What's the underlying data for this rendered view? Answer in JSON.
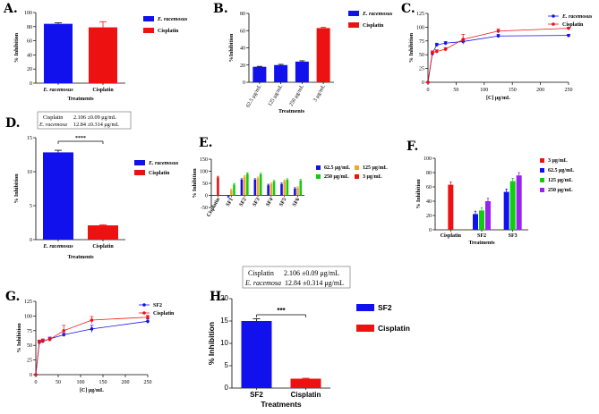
{
  "figure": {
    "colors": {
      "blue": "#1111ee",
      "red": "#ee1111",
      "green": "#11cc11",
      "orange": "#f5a623",
      "purple": "#9922ee"
    },
    "stat_box": {
      "line1_label": "Cisplatin",
      "line1_value": "2.106 ±0.09 μg/mL",
      "line2_label": "E. racemosa",
      "line2_value": "12.84 ±0.314 μg/mL"
    },
    "stat_box_h": {
      "line1_label": "Cisplatin",
      "line1_value": "2.106 ±0.09 μg/mL",
      "line2_label": "E. racemosa",
      "line2_value": "12.84 ±0.314 μg/mL"
    }
  },
  "chart_data": [
    {
      "id": "A",
      "panel_label": "A.",
      "type": "bar",
      "categories": [
        "E. racemosus",
        "Cisplatin"
      ],
      "values": [
        84,
        79
      ],
      "errors": [
        1.5,
        8
      ],
      "colors": [
        "blue",
        "red"
      ],
      "ylim": [
        0,
        100
      ],
      "yticks": [
        0,
        20,
        40,
        60,
        80,
        100
      ],
      "xlabel": "Treatments",
      "ylabel": "% Inhibition",
      "legend": [
        "E. racemosus",
        "Cisplatin"
      ]
    },
    {
      "id": "B",
      "panel_label": "B.",
      "type": "bar",
      "categories": [
        "62.5 μg/mL",
        "125 μg/mL",
        "250 μg/mL",
        "3 μg/mL"
      ],
      "values": [
        18,
        20,
        24,
        63
      ],
      "errors": [
        0.5,
        0.8,
        1,
        0.8
      ],
      "colors": [
        "blue",
        "blue",
        "blue",
        "red"
      ],
      "ylim": [
        0,
        80
      ],
      "yticks": [
        0,
        20,
        40,
        60,
        80
      ],
      "xlabel": "Treatments",
      "ylabel": "%Inhibition",
      "legend": [
        "E. racemosus",
        "Cisplatin"
      ]
    },
    {
      "id": "C",
      "panel_label": "C.",
      "type": "line",
      "series": [
        {
          "name": "E. racemosus",
          "color": "blue",
          "x": [
            0,
            7.8,
            15.6,
            31.25,
            62.5,
            125,
            250
          ],
          "y": [
            0,
            52,
            68,
            71,
            74,
            84,
            85
          ],
          "err": [
            0,
            3,
            3,
            3,
            3,
            3,
            2
          ]
        },
        {
          "name": "Cisplatin",
          "color": "red",
          "x": [
            0,
            7.8,
            15.6,
            31.25,
            62.5,
            125,
            250
          ],
          "y": [
            0,
            54,
            56,
            60,
            78,
            93,
            98
          ],
          "err": [
            0,
            3,
            3,
            3,
            9,
            4,
            2
          ]
        }
      ],
      "xlim": [
        0,
        250
      ],
      "xticks": [
        0,
        50,
        100,
        150,
        200,
        250
      ],
      "ylim": [
        0,
        125
      ],
      "yticks": [
        0,
        25,
        50,
        75,
        100,
        125
      ],
      "xlabel": "[C]  μg/mL",
      "ylabel": "% Inhibition"
    },
    {
      "id": "D",
      "panel_label": "D.",
      "type": "bar",
      "categories": [
        "E. racemosus",
        "Cisplatin"
      ],
      "values": [
        12.84,
        2.1
      ],
      "errors": [
        0.31,
        0.09
      ],
      "colors": [
        "blue",
        "red"
      ],
      "ylim": [
        0,
        15
      ],
      "yticks": [
        0,
        5,
        10,
        15
      ],
      "xlabel": "Treatments",
      "ylabel": "% Inhibition",
      "legend": [
        "E. racemosus",
        "Cisplatin"
      ],
      "significance": "****"
    },
    {
      "id": "E",
      "panel_label": "E.",
      "type": "bar",
      "categories": [
        "Cisplatin",
        "SF1",
        "SF2",
        "SF3",
        "SF4",
        "SF5",
        "SF6"
      ],
      "series": [
        {
          "name": "62.5 μg/mL",
          "color": "blue",
          "values": [
            null,
            -5,
            65,
            65,
            42,
            47,
            28
          ]
        },
        {
          "name": "125 μg/mL",
          "color": "orange",
          "values": [
            null,
            22,
            78,
            72,
            48,
            60,
            32
          ]
        },
        {
          "name": "250 μg/mL",
          "color": "green",
          "values": [
            null,
            45,
            90,
            88,
            58,
            65,
            62
          ]
        },
        {
          "name": "3 μg/mL",
          "color": "red",
          "values": [
            75,
            null,
            null,
            null,
            null,
            null,
            null
          ]
        }
      ],
      "ylim": [
        -50,
        150
      ],
      "yticks": [
        -50,
        0,
        50,
        100,
        150
      ],
      "ylabel": "% Inhibition"
    },
    {
      "id": "F",
      "panel_label": "F.",
      "type": "bar",
      "categories": [
        "Cisplatin",
        "SF2",
        "SF3"
      ],
      "series": [
        {
          "name": "3 μg/mL",
          "color": "red",
          "values": [
            63,
            null,
            null
          ]
        },
        {
          "name": "62.5 μg/mL",
          "color": "blue",
          "values": [
            null,
            22,
            53
          ]
        },
        {
          "name": "125 μg/mL",
          "color": "green",
          "values": [
            null,
            27,
            68
          ]
        },
        {
          "name": "250 μg/mL",
          "color": "purple",
          "values": [
            null,
            40,
            76
          ]
        }
      ],
      "ylim": [
        0,
        100
      ],
      "yticks": [
        0,
        20,
        40,
        60,
        80,
        100
      ],
      "xlabel": "Treatments",
      "ylabel": "% Inhibition"
    },
    {
      "id": "G",
      "panel_label": "G.",
      "type": "line",
      "series": [
        {
          "name": "SF2",
          "color": "blue",
          "x": [
            0,
            7.8,
            15.6,
            31.25,
            62.5,
            125,
            250
          ],
          "y": [
            0,
            55,
            57,
            61,
            68,
            78,
            91
          ],
          "err": [
            0,
            3,
            3,
            3,
            3,
            6,
            4
          ]
        },
        {
          "name": "Cisplatin",
          "color": "red",
          "x": [
            0,
            7.8,
            15.6,
            31.25,
            62.5,
            125,
            250
          ],
          "y": [
            0,
            56,
            58,
            60,
            75,
            93,
            98
          ],
          "err": [
            0,
            3,
            3,
            3,
            9,
            6,
            3
          ]
        }
      ],
      "xlim": [
        0,
        250
      ],
      "xticks": [
        0,
        50,
        100,
        150,
        200,
        250
      ],
      "ylim": [
        0,
        125
      ],
      "yticks": [
        0,
        25,
        50,
        75,
        100,
        125
      ],
      "xlabel": "[C]  μg/mL",
      "ylabel": "% Inhibition"
    },
    {
      "id": "H",
      "panel_label": "H.",
      "type": "bar",
      "categories": [
        "SF2",
        "Cisplatin"
      ],
      "values": [
        15,
        2.1
      ],
      "errors": [
        0.5,
        0.1
      ],
      "colors": [
        "blue",
        "red"
      ],
      "ylim": [
        0,
        20
      ],
      "yticks": [
        0,
        5,
        10,
        15,
        20
      ],
      "xlabel": "Treatments",
      "ylabel": "% Inhibition",
      "legend": [
        "SF2",
        "Cisplatin"
      ],
      "significance": "***"
    }
  ]
}
